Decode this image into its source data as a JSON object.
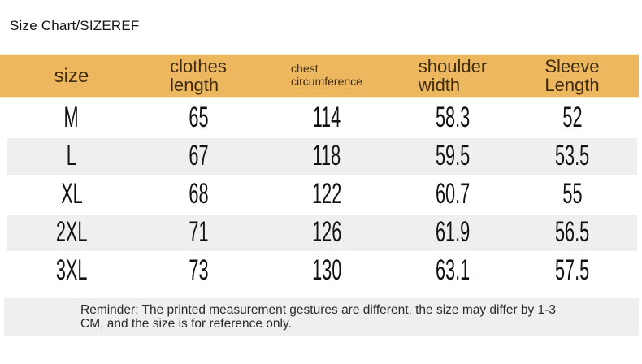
{
  "title": "Size Chart/SIZEREF",
  "colors": {
    "header_background": "#edb75f",
    "header_text": "#3f2c10",
    "stripe_background": "#efefef",
    "reminder_background": "#efefef"
  },
  "table": {
    "headers": {
      "size": "size",
      "clothes_length": "clothes\nlength",
      "chest_circumference": "chest\ncircumference",
      "shoulder_width": "shoulder\nwidth",
      "sleeve_length": "Sleeve\nLength"
    },
    "rows": [
      [
        "M",
        "65",
        "114",
        "58.3",
        "52"
      ],
      [
        "L",
        "67",
        "118",
        "59.5",
        "53.5"
      ],
      [
        "XL",
        "68",
        "122",
        "60.7",
        "55"
      ],
      [
        "2XL",
        "71",
        "126",
        "61.9",
        "56.5"
      ],
      [
        "3XL",
        "73",
        "130",
        "63.1",
        "57.5"
      ]
    ]
  },
  "chart_data": {
    "type": "table",
    "title": "Size Chart/SIZEREF",
    "columns": [
      "size",
      "clothes length",
      "chest circumference",
      "shoulder width",
      "Sleeve Length"
    ],
    "rows": [
      [
        "M",
        65,
        114,
        58.3,
        52
      ],
      [
        "L",
        67,
        118,
        59.5,
        53.5
      ],
      [
        "XL",
        68,
        122,
        60.7,
        55
      ],
      [
        "2XL",
        71,
        126,
        61.9,
        56.5
      ],
      [
        "3XL",
        73,
        130,
        63.1,
        57.5
      ]
    ],
    "note": "Reminder: The printed measurement gestures are different, the size may differ by 1-3 CM, and the size is for reference only."
  },
  "reminder": "Reminder: The printed measurement gestures are different, the size may differ by 1-3\nCM, and the size is for reference only."
}
